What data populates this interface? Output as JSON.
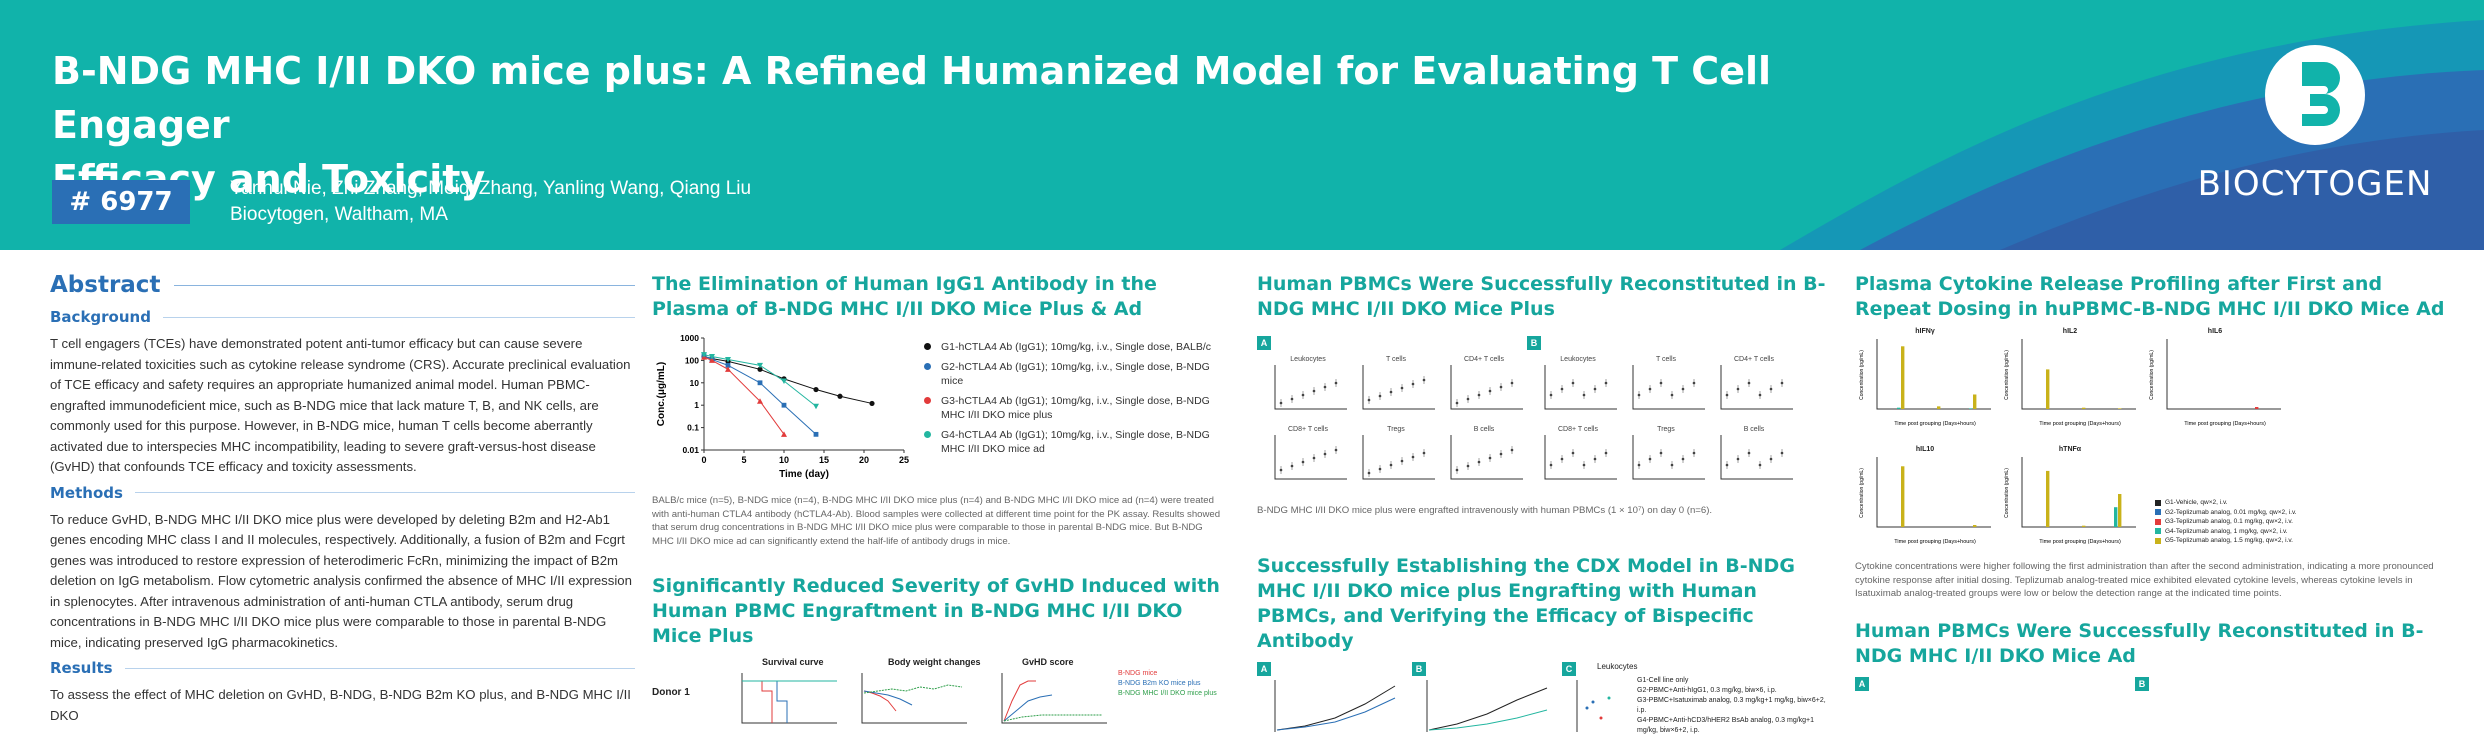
{
  "header": {
    "title_line1": "B-NDG MHC I/II DKO mice plus: A Refined Humanized Model for Evaluating T Cell Engager",
    "title_line2": "Efficacy and Toxicity",
    "poster_id": "# 6977",
    "authors": "Yanhui Nie, Zhi Zhang, Meiqi Zhang, Yanling Wang, Qiang Liu",
    "affiliation": "Biocytogen, Waltham, MA",
    "logo_text": "BIOCYTOGEN",
    "colors": {
      "banner": "#11b3aa",
      "accent_blue": "#2a6fb5",
      "logo_swoosh": "#2a6fb5"
    }
  },
  "abstract": {
    "heading": "Abstract",
    "background_label": "Background",
    "background_text": "T cell engagers (TCEs) have demonstrated potent anti-tumor efficacy but can cause severe immune-related toxicities such as cytokine release syndrome (CRS). Accurate preclinical evaluation of TCE efficacy and safety requires an appropriate humanized animal model. Human PBMC-engrafted immunodeficient mice, such as B-NDG mice that lack mature T, B, and NK cells, are commonly used for this purpose. However, in B-NDG mice, human T cells become aberrantly activated due to interspecies MHC incompatibility, leading to severe graft-versus-host disease (GvHD) that confounds TCE efficacy and toxicity assessments.",
    "methods_label": "Methods",
    "methods_text": "To reduce GvHD, B-NDG MHC I/II DKO mice plus were developed by deleting B2m and H2-Ab1 genes encoding MHC class I and II molecules, respectively. Additionally, a fusion of B2m and Fcgrt genes was introduced to restore expression of heterodimeric FcRn, minimizing the impact of B2m deletion on IgG metabolism. Flow cytometric analysis confirmed the absence of MHC I/II expression in splenocytes. After intravenous administration of anti-human CTLA antibody, serum drug concentrations in B-NDG MHC I/II DKO mice plus were comparable to those in parental B-NDG mice, indicating preserved IgG pharmacokinetics.",
    "results_label": "Results",
    "results_text": "To assess the effect of MHC deletion on GvHD, B-NDG, B-NDG B2m KO plus, and B-NDG MHC I/II DKO"
  },
  "section_igg": {
    "title": "The Elimination of Human IgG1 Antibody in the Plasma of B-NDG MHC I/II DKO Mice Plus & Ad",
    "legend": [
      {
        "label": "G1-hCTLA4 Ab (IgG1); 10mg/kg, i.v., Single dose, BALB/c",
        "color": "#111111"
      },
      {
        "label": "G2-hCTLA4 Ab (IgG1); 10mg/kg, i.v., Single dose, B-NDG mice",
        "color": "#2a6fb5"
      },
      {
        "label": "G3-hCTLA4 Ab (IgG1); 10mg/kg, i.v., Single dose, B-NDG MHC I/II DKO mice plus",
        "color": "#e23b3b"
      },
      {
        "label": "G4-hCTLA4 Ab (IgG1); 10mg/kg, i.v., Single dose, B-NDG MHC I/II DKO mice ad",
        "color": "#23b6a0"
      }
    ],
    "caption": "BALB/c mice (n=5), B-NDG mice (n=4), B-NDG MHC I/II DKO mice plus (n=4) and B-NDG MHC I/II DKO mice ad (n=4) were treated with anti-human CTLA4 antibody (hCTLA4-Ab). Blood samples were collected at different time point for the PK assay. Results showed that serum drug concentrations in B-NDG MHC I/II DKO mice plus were comparable to those in parental B-NDG mice. But B-NDG MHC I/II DKO mice ad can significantly extend the half-life of antibody drugs in mice."
  },
  "chart_data": [
    {
      "type": "line",
      "xlabel": "Time (day)",
      "ylabel": "Conc.(μg/mL)",
      "xlim": [
        0,
        25
      ],
      "ylim_log": [
        0.01,
        1000
      ],
      "x_ticks": [
        "0",
        "5",
        "10",
        "15",
        "20",
        "25"
      ],
      "y_ticks": [
        "1000",
        "100",
        "10",
        "1",
        "0.1",
        "0.01"
      ],
      "series": [
        {
          "color": "#111111",
          "marker": "circle",
          "x": [
            0,
            1,
            3,
            7,
            10,
            14,
            17,
            21
          ],
          "y": [
            150,
            120,
            90,
            40,
            15,
            5,
            2.5,
            1.2
          ]
        },
        {
          "color": "#2a6fb5",
          "marker": "square",
          "x": [
            0,
            1,
            3,
            7,
            10,
            14
          ],
          "y": [
            160,
            110,
            60,
            10,
            1.0,
            0.05
          ]
        },
        {
          "color": "#e23b3b",
          "marker": "triangle",
          "x": [
            0,
            1,
            3,
            7,
            10
          ],
          "y": [
            140,
            100,
            40,
            1.5,
            0.05
          ]
        },
        {
          "color": "#23b6a0",
          "marker": "triangle-down",
          "x": [
            0,
            1,
            3,
            7,
            10,
            14
          ],
          "y": [
            180,
            150,
            110,
            60,
            12,
            0.9
          ]
        }
      ]
    }
  ],
  "section_gvhd": {
    "title": "Significantly Reduced Severity of GvHD Induced with Human PBMC Engraftment in B-NDG MHC I/II DKO Mice Plus",
    "subplot_titles": [
      "Survival curve",
      "Body weight changes",
      "GvHD score"
    ],
    "row_label": "Donor 1",
    "legend": [
      "B-NDG mice",
      "B-NDG B2m KO mice plus",
      "B-NDG MHC I/II DKO mice plus"
    ]
  },
  "section_pbmc": {
    "title": "Human PBMCs Were Successfully Reconstituted in B-NDG MHC I/II DKO Mice Plus",
    "panel_a": "A",
    "panel_b": "B",
    "caption": "B-NDG MHC I/II DKO mice plus were engrafted intravenously with human PBMCs (1 × 10⁷) on day 0 (n=6).",
    "mini_titles_a": [
      "Leukocytes",
      "T cells",
      "CD4+ T cells",
      "CD8+ T cells",
      "Tregs",
      "B cells"
    ],
    "mini_titles_b": [
      "Leukocytes",
      "T cells",
      "CD4+ T cells",
      "CD8+ T cells",
      "Tregs",
      "B cells"
    ]
  },
  "section_cdx": {
    "title": "Successfully Establishing the CDX Model in B-NDG MHC I/II DKO mice plus Engrafting with Human PBMCs, and Verifying the Efficacy of Bispecific Antibody",
    "panel_a": "A",
    "panel_b": "B",
    "panel_c": "C",
    "panel_c_title": "Leukocytes",
    "legend": [
      "G1-Cell line only",
      "G2-PBMC+Anti-hIgG1, 0.3 mg/kg, biw×6, i.p.",
      "G3-PBMC+Isatuximab analog, 0.3 mg/kg+1 mg/kg, biw×6+2, i.p.",
      "G4-PBMC+Anti-hCD3/hHER2 BsAb analog, 0.3 mg/kg+1 mg/kg, biw×6+2, i.p."
    ]
  },
  "section_cytokine": {
    "title": "Plasma Cytokine Release Profiling after First and Repeat Dosing in huPBMC-B-NDG MHC I/II DKO Mice Ad",
    "panels": [
      "hIFNγ",
      "hIL2",
      "hIL6",
      "hIL10",
      "hTNFα"
    ],
    "xlabel": "Time post grouping (Days+hours)",
    "ylabel": "Concentration (pg/mL)",
    "legend": [
      {
        "label": "G1-Vehicle, qw×2, i.v.",
        "color": "#222222"
      },
      {
        "label": "G2-Teplizumab analog, 0.01 mg/kg, qw×2, i.v.",
        "color": "#2a6fb5"
      },
      {
        "label": "G3-Teplizumab analog, 0.1 mg/kg, qw×2, i.v.",
        "color": "#e23b3b"
      },
      {
        "label": "G4-Teplizumab analog, 1 mg/kg, qw×2, i.v.",
        "color": "#23b6a0"
      },
      {
        "label": "G5-Teplizumab analog, 1.5 mg/kg, qw×2, i.v.",
        "color": "#c9b21a"
      }
    ],
    "caption": "Cytokine concentrations were higher following the first administration than after the second administration, indicating a more pronounced cytokine response after initial dosing. Teplizumab analog-treated mice exhibited elevated cytokine levels, whereas cytokine levels in Isatuximab analog-treated groups were low or below the detection range at the indicated time points."
  },
  "section_pbmc_ad": {
    "title": "Human PBMCs Were Successfully Reconstituted in B-NDG MHC I/II DKO Mice Ad",
    "panel_a": "A",
    "panel_b": "B"
  }
}
